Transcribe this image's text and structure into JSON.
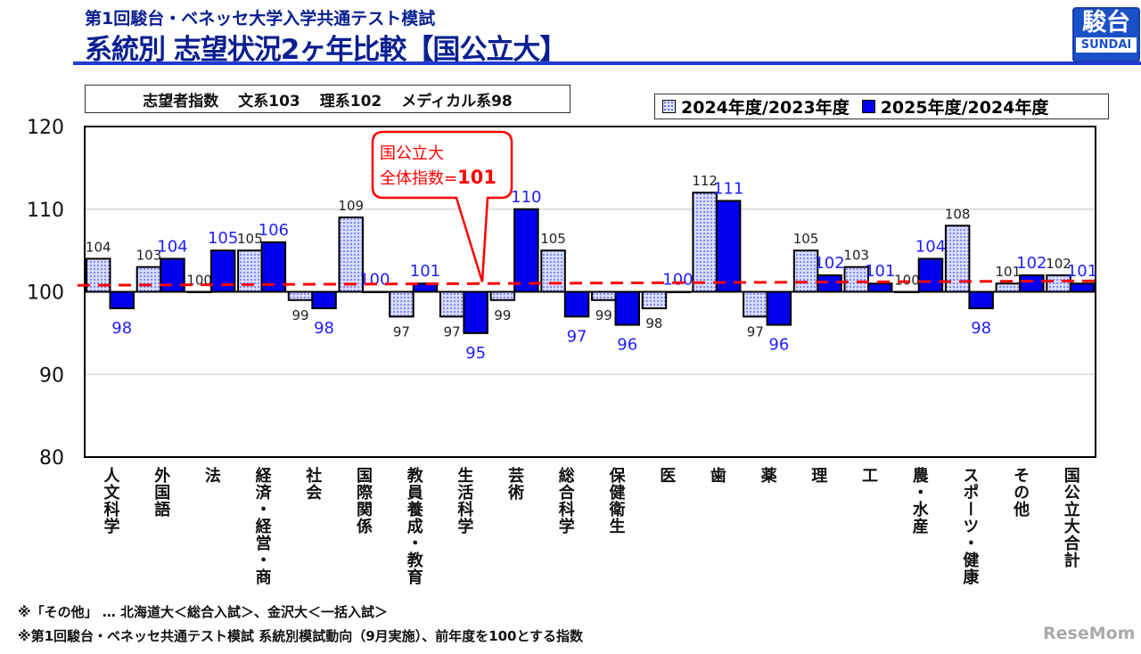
{
  "header": {
    "subtitle": "第1回駿台・ベネッセ大学入学共通テスト模試",
    "title": "系統別 志望状況2ヶ年比較【国公立大】",
    "logo_kanji": "駿台",
    "logo_en": "SUNDAI"
  },
  "info": {
    "label": "志望者指数",
    "items": [
      "文系103",
      "理系102",
      "メディカル系98"
    ]
  },
  "callout": {
    "line1": "国公立大",
    "line2_prefix": "全体指数=",
    "value": "101"
  },
  "chart_data": {
    "type": "bar",
    "title": "",
    "ylim": [
      80,
      120
    ],
    "yticks": [
      80,
      90,
      100,
      110,
      120
    ],
    "baseline": 100,
    "reference_line": {
      "value": 101,
      "color": "#ff0000",
      "style": "dashed"
    },
    "grid": true,
    "legend_position": "top-right",
    "categories": [
      "人文科学",
      "外国語",
      "法",
      "経済・経営・商",
      "社会",
      "国際関係",
      "教員養成・教育",
      "生活科学",
      "芸術",
      "総合科学",
      "保健衛生",
      "医",
      "歯",
      "薬",
      "理",
      "工",
      "農・水産",
      "スポーツ・健康",
      "その他",
      "国公立大合計"
    ],
    "series": [
      {
        "name": "2024年度/2023年度",
        "color": "#d8dcff",
        "label_color": "#222222",
        "values": [
          104,
          103,
          100,
          105,
          99,
          109,
          97,
          97,
          99,
          105,
          99,
          98,
          112,
          97,
          105,
          103,
          100,
          108,
          101,
          102
        ]
      },
      {
        "name": "2025年度/2024年度",
        "color": "#0000ee",
        "label_color": "#2020ff",
        "values": [
          98,
          104,
          105,
          106,
          98,
          100,
          101,
          95,
          110,
          97,
          96,
          100,
          111,
          96,
          102,
          101,
          104,
          98,
          102,
          101
        ]
      }
    ]
  },
  "footnotes": [
    "※「その他」 … 北海道大＜総合入試＞、金沢大＜一括入試＞",
    "※第1回駿台・ベネッセ共通テスト模試 系統別模試動向（9月実施）、前年度を100とする指数"
  ],
  "watermark": "ReseMom"
}
